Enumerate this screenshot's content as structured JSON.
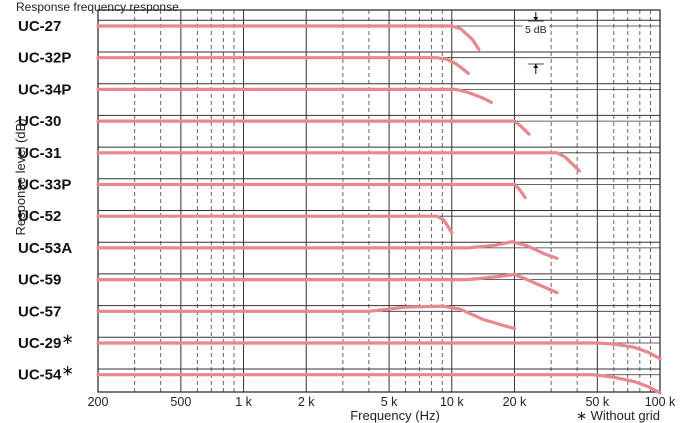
{
  "title_partial": "Response frequency response",
  "chart_data": {
    "type": "line",
    "title": "",
    "xlabel": "Frequency (Hz)",
    "ylabel": "Response level (dB)",
    "xscale": "log",
    "xlim": [
      200,
      100000
    ],
    "xticks": [
      {
        "value": 200,
        "label": "200"
      },
      {
        "value": 500,
        "label": "500"
      },
      {
        "value": 1000,
        "label": "1 k"
      },
      {
        "value": 2000,
        "label": "2 k"
      },
      {
        "value": 5000,
        "label": "5 k"
      },
      {
        "value": 10000,
        "label": "10 k"
      },
      {
        "value": 20000,
        "label": "20 k"
      },
      {
        "value": 50000,
        "label": "50 k"
      },
      {
        "value": 100000,
        "label": "100 k"
      }
    ],
    "scale_bar_label": "5 dB",
    "scale_bar_db": 5,
    "note": "∗ Without grid",
    "series_color": "#e8878c",
    "series": [
      {
        "name": "UC-27",
        "flag": false,
        "points": [
          [
            200,
            0
          ],
          [
            9000,
            0
          ],
          [
            10000,
            0
          ],
          [
            11000,
            -0.5
          ],
          [
            12500,
            -2.5
          ],
          [
            13500,
            -4.5
          ]
        ]
      },
      {
        "name": "UC-32P",
        "flag": false,
        "points": [
          [
            200,
            0
          ],
          [
            7000,
            0
          ],
          [
            8500,
            0
          ],
          [
            9500,
            -0.3
          ],
          [
            10500,
            -1.2
          ],
          [
            12000,
            -3
          ]
        ]
      },
      {
        "name": "UC-34P",
        "flag": false,
        "points": [
          [
            200,
            0
          ],
          [
            9000,
            0
          ],
          [
            10500,
            0
          ],
          [
            12000,
            -0.6
          ],
          [
            14000,
            -1.6
          ],
          [
            15500,
            -2.5
          ]
        ]
      },
      {
        "name": "UC-30",
        "flag": false,
        "points": [
          [
            200,
            0
          ],
          [
            18000,
            0
          ],
          [
            20000,
            0
          ],
          [
            21500,
            -1
          ],
          [
            23500,
            -2.5
          ]
        ]
      },
      {
        "name": "UC-31",
        "flag": false,
        "points": [
          [
            200,
            0
          ],
          [
            28000,
            0
          ],
          [
            32000,
            0
          ],
          [
            35000,
            -0.8
          ],
          [
            38000,
            -2.2
          ],
          [
            41000,
            -3.5
          ]
        ]
      },
      {
        "name": "UC-33P",
        "flag": false,
        "points": [
          [
            200,
            0
          ],
          [
            18000,
            0
          ],
          [
            20000,
            0
          ],
          [
            21000,
            -0.8
          ],
          [
            22500,
            -2.5
          ]
        ]
      },
      {
        "name": "UC-52",
        "flag": false,
        "points": [
          [
            200,
            0
          ],
          [
            7500,
            0
          ],
          [
            8500,
            0
          ],
          [
            9200,
            -0.8
          ],
          [
            10000,
            -3.2
          ]
        ]
      },
      {
        "name": "UC-53A",
        "flag": false,
        "points": [
          [
            200,
            0
          ],
          [
            12000,
            0
          ],
          [
            16000,
            0.5
          ],
          [
            19500,
            1.2
          ],
          [
            23000,
            0.4
          ],
          [
            28000,
            -1.2
          ],
          [
            32000,
            -2
          ]
        ]
      },
      {
        "name": "UC-59",
        "flag": false,
        "points": [
          [
            200,
            0
          ],
          [
            12000,
            0
          ],
          [
            16000,
            0.5
          ],
          [
            20000,
            1
          ],
          [
            23000,
            0
          ],
          [
            28000,
            -1.5
          ],
          [
            32000,
            -2.5
          ]
        ]
      },
      {
        "name": "UC-57",
        "flag": false,
        "points": [
          [
            200,
            0
          ],
          [
            4000,
            0
          ],
          [
            6000,
            0.8
          ],
          [
            9000,
            1
          ],
          [
            11000,
            0.4
          ],
          [
            14000,
            -1.5
          ],
          [
            18000,
            -2.8
          ],
          [
            20000,
            -3.3
          ]
        ]
      },
      {
        "name": "UC-29",
        "flag": true,
        "points": [
          [
            200,
            0
          ],
          [
            50000,
            0
          ],
          [
            60000,
            -0.2
          ],
          [
            75000,
            -0.8
          ],
          [
            88000,
            -1.8
          ],
          [
            100000,
            -3
          ]
        ]
      },
      {
        "name": "UC-54",
        "flag": true,
        "points": [
          [
            200,
            0
          ],
          [
            48000,
            0
          ],
          [
            60000,
            -0.5
          ],
          [
            75000,
            -1.3
          ],
          [
            88000,
            -2.3
          ],
          [
            100000,
            -3.5
          ]
        ]
      }
    ]
  }
}
